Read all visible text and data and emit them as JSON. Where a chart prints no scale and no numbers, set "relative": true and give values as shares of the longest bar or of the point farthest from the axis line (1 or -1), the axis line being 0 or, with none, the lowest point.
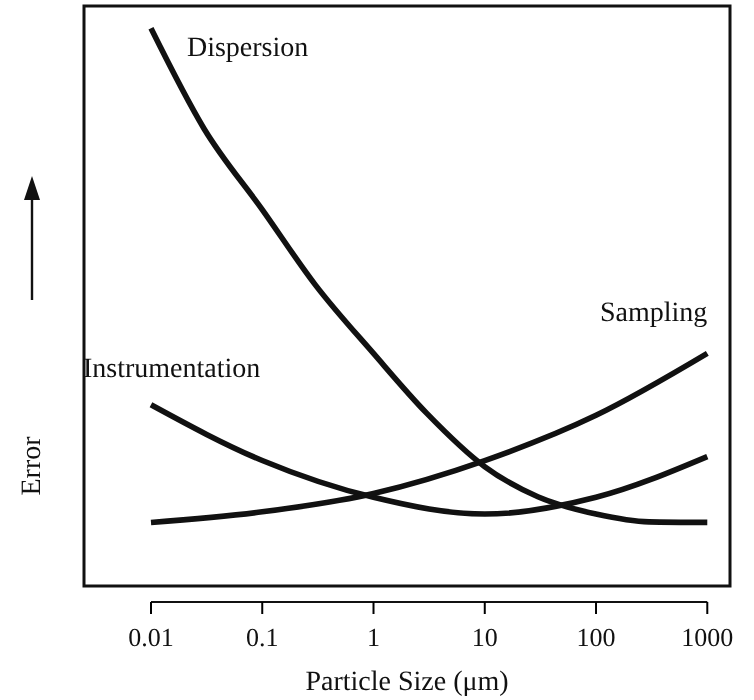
{
  "chart_data": {
    "type": "line",
    "xlabel": "Particle Size (μm)",
    "ylabel": "Error",
    "relative": true,
    "log": "x",
    "xlim": [
      0.0025,
      1600
    ],
    "xticks": [
      0.01,
      0.1,
      1,
      10,
      100,
      1000
    ],
    "grid": false,
    "marker": "none",
    "line_style": "solid",
    "series": [
      {
        "name": "Dispersion",
        "color": "#111111",
        "x": [
          0.01,
          0.03,
          0.1,
          0.3,
          1,
          3,
          10,
          30,
          100,
          300,
          1000
        ],
        "values": [
          1,
          0.82,
          0.675,
          0.54,
          0.417,
          0.31,
          0.214,
          0.16,
          0.129,
          0.115,
          0.114
        ]
      },
      {
        "name": "Instrumentation",
        "color": "#111111",
        "x": [
          0.01,
          0.1,
          1,
          10,
          100,
          1000
        ],
        "values": [
          0.325,
          0.225,
          0.159,
          0.129,
          0.159,
          0.232
        ]
      },
      {
        "name": "Sampling",
        "color": "#111111",
        "x": [
          0.01,
          0.1,
          1,
          10,
          100,
          1000
        ],
        "values": [
          0.114,
          0.133,
          0.166,
          0.225,
          0.306,
          0.417
        ]
      }
    ]
  }
}
